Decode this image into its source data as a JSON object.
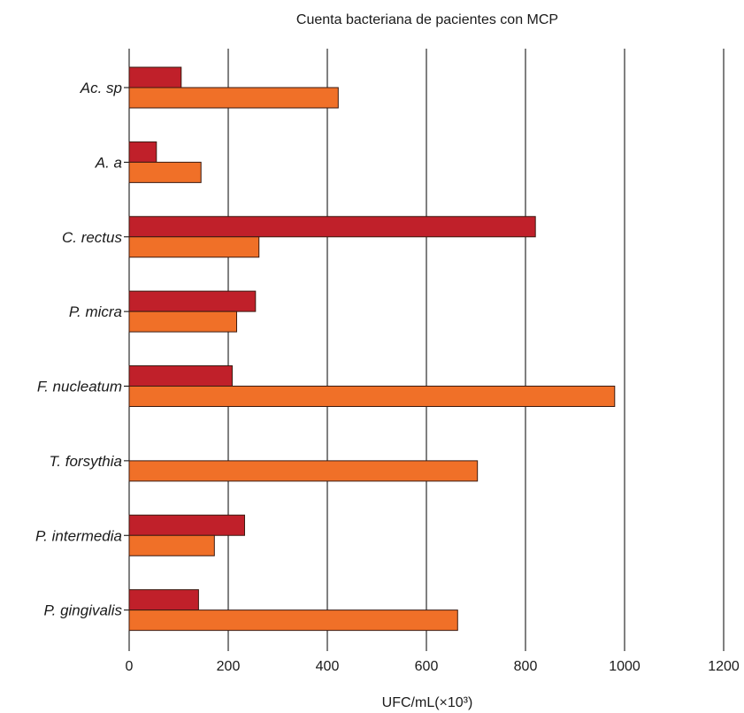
{
  "chart_data": {
    "type": "bar",
    "orientation": "horizontal",
    "title": "Cuenta bacteriana de pacientes con MCP",
    "xlabel": "UFC/mL(×10³)",
    "ylabel": "",
    "xlim": [
      0,
      1200
    ],
    "xticks": [
      "0",
      "200",
      "400",
      "600",
      "800",
      "1000",
      "1200"
    ],
    "xtick_values": [
      0,
      200,
      400,
      600,
      800,
      1000,
      1200
    ],
    "grid": "vertical",
    "legend": "none",
    "categories": [
      "Ac. sp",
      "A. a",
      "C. rectus",
      "P. micra",
      "F. nucleatum",
      "T. forsythia",
      "P. intermedia",
      "P. gingivalis"
    ],
    "series": [
      {
        "color": "#c0202a",
        "values": [
          105,
          55,
          820,
          255,
          208,
          0,
          233,
          140
        ]
      },
      {
        "color": "#f07028",
        "values": [
          422,
          145,
          262,
          217,
          980,
          703,
          172,
          663
        ]
      }
    ]
  }
}
